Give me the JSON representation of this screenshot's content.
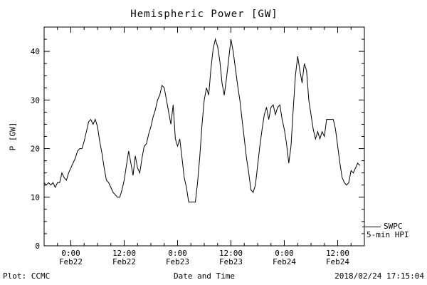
{
  "chart_data": {
    "type": "line",
    "title": "Hemispheric Power [GW]",
    "xlabel": "Date and Time",
    "ylabel": "P [GW]",
    "xlim": [
      0,
      72
    ],
    "ylim": [
      0,
      45
    ],
    "x_unit": "hours (0 = Feb 21 18:00, read from axis)",
    "grid": false,
    "line_color": "#000000",
    "y_ticks": [
      0,
      10,
      20,
      30,
      40
    ],
    "x_ticks": [
      {
        "pos": 6,
        "time": "0:00",
        "date": "Feb22"
      },
      {
        "pos": 18,
        "time": "12:00",
        "date": "Feb22"
      },
      {
        "pos": 30,
        "time": "0:00",
        "date": "Feb23"
      },
      {
        "pos": 42,
        "time": "12:00",
        "date": "Feb23"
      },
      {
        "pos": 54,
        "time": "0:00",
        "date": "Feb24"
      },
      {
        "pos": 66,
        "time": "12:00",
        "date": "Feb24"
      }
    ],
    "legend": {
      "line1": "SWPC",
      "line2": "5-min HPI"
    },
    "series": [
      {
        "name": "SWPC 5-min HPI",
        "x_encoding": {
          "start": 0,
          "step_hours": 0.5
        },
        "y": [
          13,
          12.5,
          13,
          12.5,
          13,
          12,
          13,
          13,
          15,
          14,
          13.5,
          15,
          16,
          17,
          18,
          19.5,
          20,
          20,
          21.5,
          23.5,
          25.5,
          26,
          25,
          26,
          24.5,
          21.5,
          19,
          16,
          13.5,
          13,
          12,
          11,
          10.5,
          10,
          10,
          11.5,
          13.5,
          16.5,
          19.5,
          17,
          14.5,
          18.5,
          16,
          15,
          18,
          20.5,
          21,
          23,
          24.5,
          26.5,
          28,
          30,
          31,
          33,
          32.5,
          30,
          27.5,
          25,
          29,
          22,
          20.5,
          22,
          18,
          14,
          12,
          9,
          9,
          9,
          9,
          13,
          18.5,
          25,
          30,
          32.5,
          31,
          36.5,
          40.5,
          42.5,
          41,
          38,
          33.5,
          31,
          34.5,
          38.5,
          42.5,
          40,
          36.5,
          33,
          30,
          26,
          22,
          18,
          15,
          11.5,
          11,
          12.5,
          16.5,
          20.5,
          24,
          27,
          28.5,
          26,
          28.5,
          29,
          27,
          28.5,
          29,
          26,
          24,
          21,
          17,
          20.5,
          28,
          35,
          39,
          36,
          33.5,
          37.5,
          36,
          30,
          27,
          24,
          22,
          23.5,
          22,
          23.5,
          22.5,
          26,
          26,
          26,
          26,
          24,
          20.5,
          17,
          14,
          13,
          12.5,
          13,
          15.5,
          15,
          16,
          17,
          16.5
        ]
      }
    ]
  },
  "footer": {
    "left": "Plot: CCMC",
    "right": "2018/02/24 17:15:04"
  }
}
